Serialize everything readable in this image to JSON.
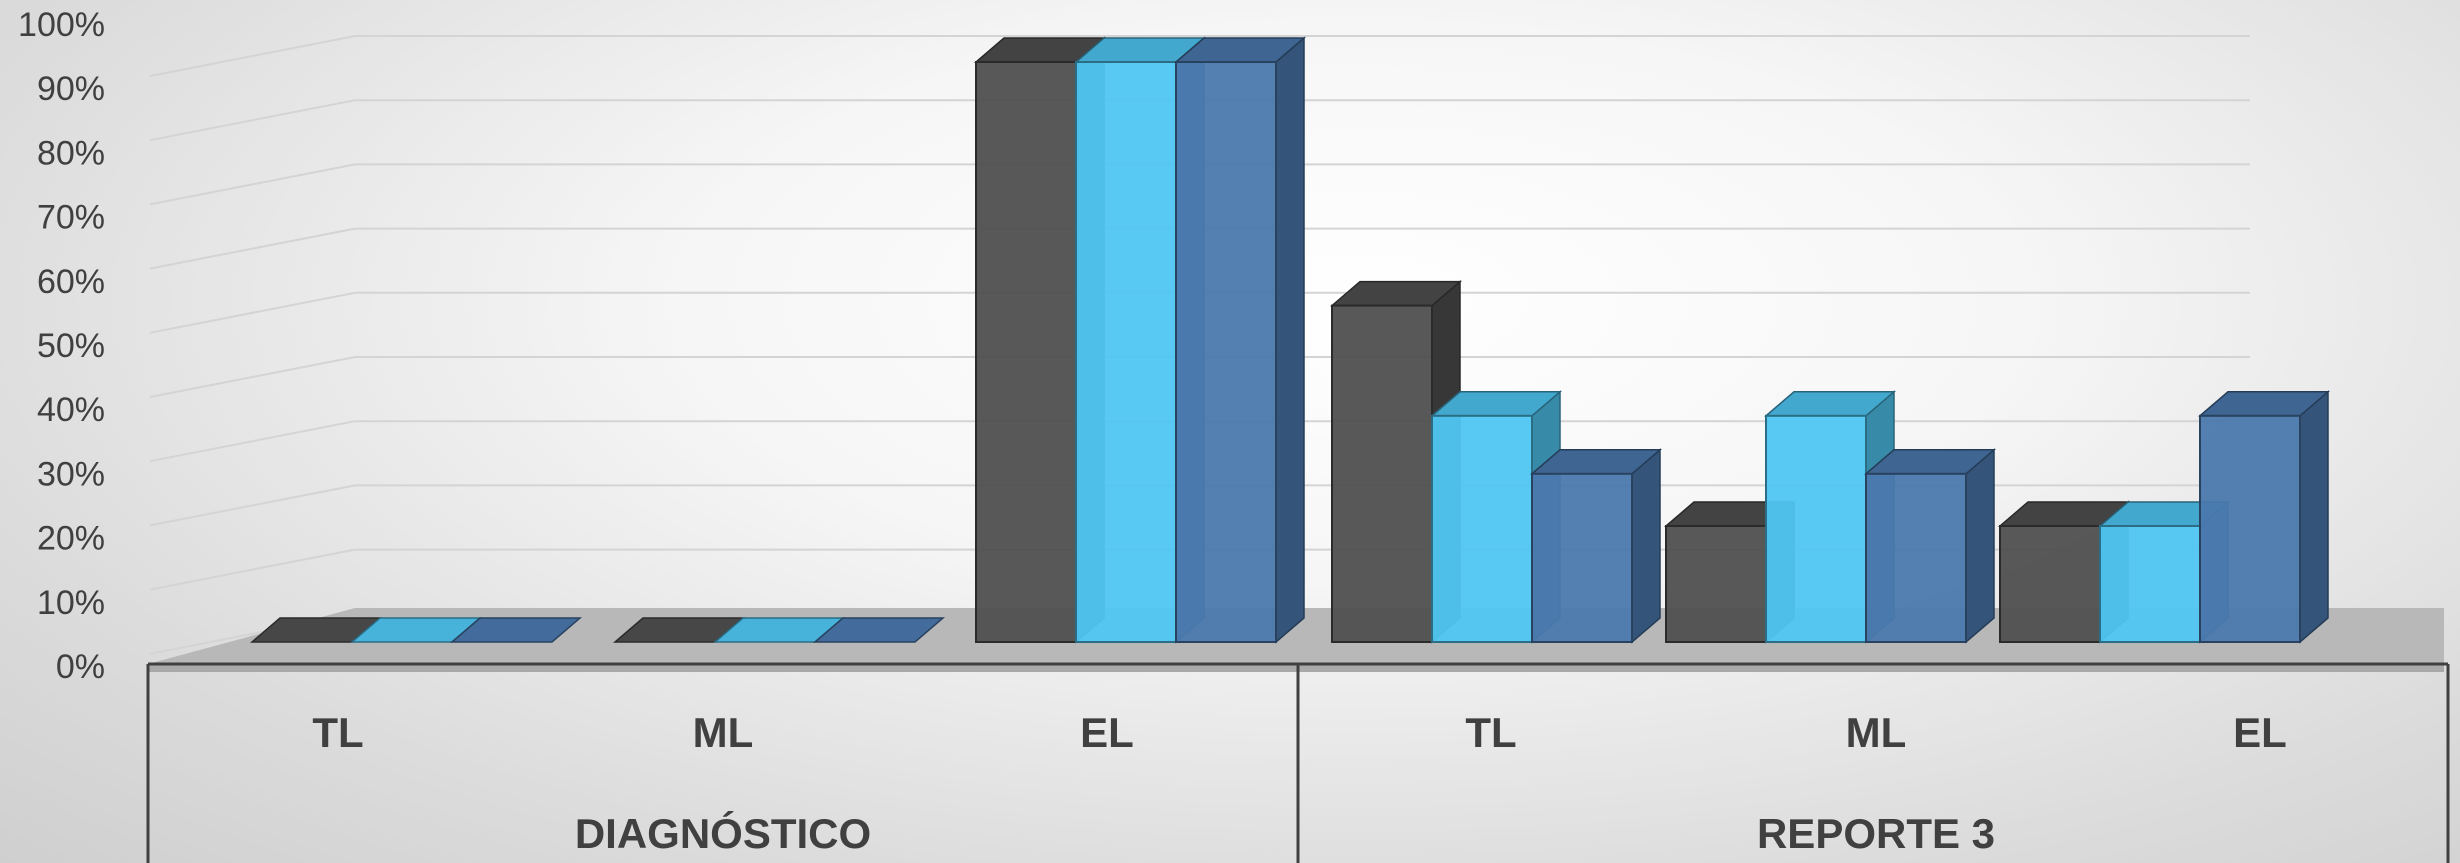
{
  "chart_data": {
    "type": "bar",
    "style": "3d-clustered",
    "groups": [
      {
        "label": "DIAGNÓSTICO",
        "categories": [
          "TL",
          "ML",
          "EL"
        ]
      },
      {
        "label": "REPORTE 3",
        "categories": [
          "TL",
          "ML",
          "EL"
        ]
      }
    ],
    "series": [
      {
        "color": "#4f4f4f",
        "values": [
          0,
          0,
          100,
          58,
          20,
          20
        ]
      },
      {
        "color": "#4fc6f2",
        "values": [
          0,
          0,
          100,
          39,
          39,
          20
        ]
      },
      {
        "color": "#4a78ad",
        "values": [
          0,
          0,
          100,
          29,
          29,
          39
        ]
      }
    ],
    "y_ticks": [
      "0%",
      "10%",
      "20%",
      "30%",
      "40%",
      "50%",
      "60%",
      "70%",
      "80%",
      "90%",
      "100%"
    ],
    "ylim": [
      0,
      100
    ],
    "grid": true,
    "legend": "none"
  }
}
